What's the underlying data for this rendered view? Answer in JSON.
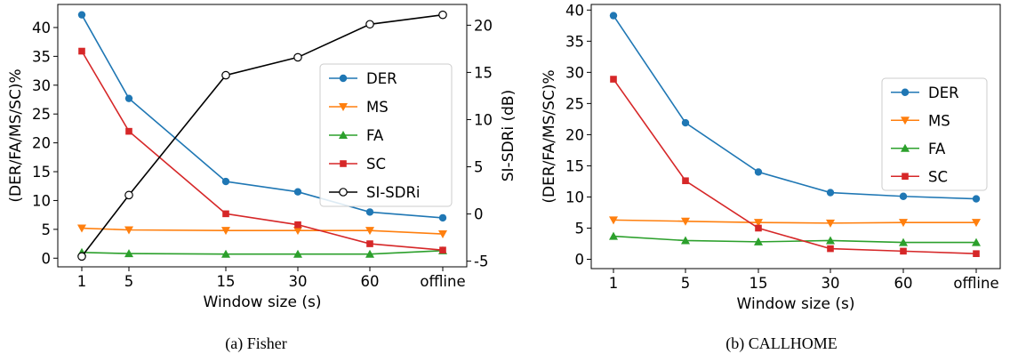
{
  "chart_data": [
    {
      "type": "line",
      "caption": "(a) Fisher",
      "xlabel": "Window size (s)",
      "ylabel": "(DER/FA/MS/SC)%",
      "y2label": "SI-SDRi (dB)",
      "categories": [
        "1",
        "5",
        "15",
        "30",
        "60",
        "offline"
      ],
      "ylim": [
        -1.5,
        44
      ],
      "yticks": [
        0,
        5,
        10,
        15,
        20,
        25,
        30,
        35,
        40
      ],
      "y2lim": [
        -5.6,
        22.2
      ],
      "y2ticks": [
        -5,
        0,
        5,
        10,
        15,
        20
      ],
      "legend_position": "center-right",
      "grid": false,
      "series": [
        {
          "name": "DER",
          "color": "#1f77b4",
          "marker": "circle",
          "axis": "left",
          "values": [
            42.2,
            27.7,
            13.3,
            11.5,
            8.0,
            7.0
          ]
        },
        {
          "name": "MS",
          "color": "#ff7f0e",
          "marker": "triangle-down",
          "axis": "left",
          "values": [
            5.2,
            4.9,
            4.8,
            4.8,
            4.8,
            4.2
          ]
        },
        {
          "name": "FA",
          "color": "#2ca02c",
          "marker": "triangle-up",
          "axis": "left",
          "values": [
            1.0,
            0.8,
            0.7,
            0.7,
            0.7,
            1.3
          ]
        },
        {
          "name": "SC",
          "color": "#d62728",
          "marker": "square",
          "axis": "left",
          "values": [
            35.9,
            22.0,
            7.7,
            5.8,
            2.5,
            1.4
          ]
        },
        {
          "name": "SI-SDRi",
          "color": "#000000",
          "marker": "open-circle",
          "axis": "right",
          "values": [
            -4.5,
            2.0,
            14.7,
            16.6,
            20.1,
            21.1
          ]
        }
      ]
    },
    {
      "type": "line",
      "caption": "(b) CALLHOME",
      "xlabel": "Window size (s)",
      "ylabel": "(DER/FA/MS/SC)%",
      "categories": [
        "1",
        "5",
        "15",
        "30",
        "60",
        "offline"
      ],
      "ylim": [
        -1.5,
        40.9
      ],
      "yticks": [
        0,
        5,
        10,
        15,
        20,
        25,
        30,
        35,
        40
      ],
      "legend_position": "center-right",
      "grid": false,
      "series": [
        {
          "name": "DER",
          "color": "#1f77b4",
          "marker": "circle",
          "values": [
            39.1,
            21.9,
            14.0,
            10.7,
            10.1,
            9.7
          ]
        },
        {
          "name": "MS",
          "color": "#ff7f0e",
          "marker": "triangle-down",
          "values": [
            6.3,
            6.1,
            5.9,
            5.8,
            5.9,
            5.9
          ]
        },
        {
          "name": "FA",
          "color": "#2ca02c",
          "marker": "triangle-up",
          "values": [
            3.7,
            3.0,
            2.8,
            3.0,
            2.7,
            2.7
          ]
        },
        {
          "name": "SC",
          "color": "#d62728",
          "marker": "square",
          "values": [
            28.9,
            12.6,
            5.0,
            1.7,
            1.3,
            0.9
          ]
        }
      ]
    }
  ]
}
